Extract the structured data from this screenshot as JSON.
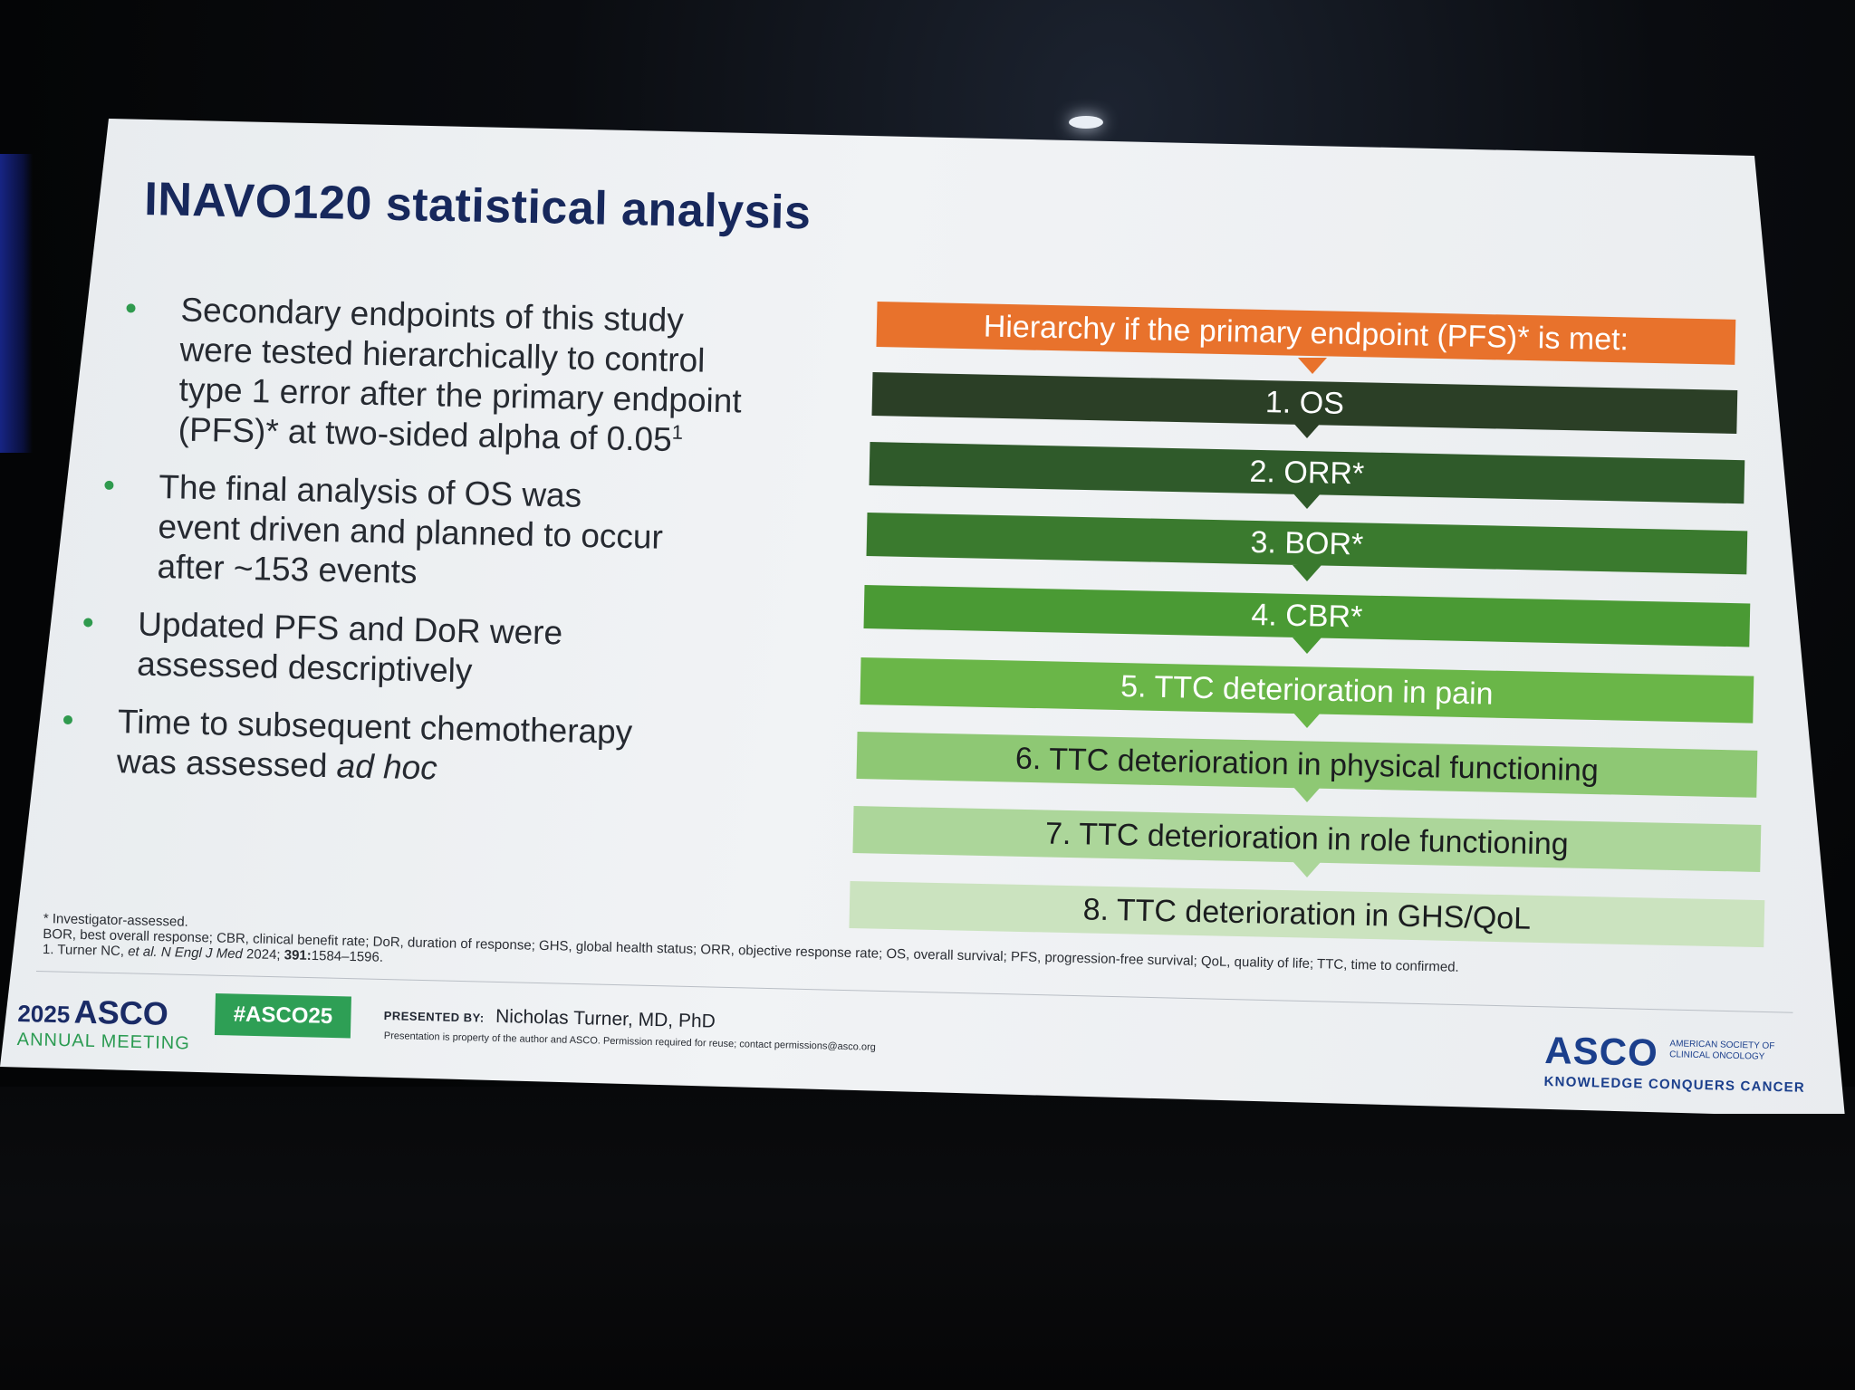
{
  "slide": {
    "title": "INAVO120 statistical analysis",
    "bullets": [
      {
        "lines": [
          "Secondary endpoints of this study",
          "were tested hierarchically to control",
          "type 1 error after the primary endpoint"
        ],
        "last_line": "(PFS)* at two-sided alpha of 0.05",
        "sup": "1"
      },
      {
        "lines": [
          "The final analysis of OS was",
          "event driven and planned to occur",
          "after ~153 events"
        ]
      },
      {
        "lines": [
          "Updated PFS and DoR were",
          "assessed descriptively"
        ]
      },
      {
        "line1": "Time to subsequent chemotherapy",
        "line2_prefix": "was assessed ",
        "line2_italic": "ad hoc"
      }
    ],
    "hierarchy": {
      "header": "Hierarchy if the primary endpoint (PFS)* is met:",
      "header_color": "#e8722c",
      "steps": [
        {
          "label": "1. OS",
          "color": "#2b3f26"
        },
        {
          "label": "2. ORR*",
          "color": "#2f5a2a"
        },
        {
          "label": "3. BOR*",
          "color": "#3a7a2e"
        },
        {
          "label": "4. CBR*",
          "color": "#4a9a34"
        },
        {
          "label": "5. TTC deterioration in pain",
          "color": "#6ab648"
        },
        {
          "label": "6. TTC deterioration in physical functioning",
          "color": "#8ec874"
        },
        {
          "label": "7. TTC deterioration in role functioning",
          "color": "#acd69a"
        },
        {
          "label": "8. TTC deterioration in GHS/QoL",
          "color": "#cbe3bf"
        }
      ]
    },
    "footnotes": {
      "line1": "* Investigator-assessed.",
      "line2": "BOR, best overall response; CBR, clinical benefit rate; DoR, duration of response; GHS, global health status; ORR, objective response rate; OS, overall survival; PFS, progression-free survival; QoL, quality of life; TTC, time to confirmed.",
      "line3_prefix": "1. Turner NC, ",
      "line3_italic": "et al. N Engl J Med",
      "line3_mid": " 2024; ",
      "line3_bold": "391:",
      "line3_suffix": "1584–1596."
    },
    "footer": {
      "meeting_year": "2025",
      "meeting_name": "ASCO",
      "meeting_sub": "ANNUAL MEETING",
      "hashtag": "#ASCO25",
      "presented_label": "PRESENTED BY:",
      "presenter": "Nicholas Turner, MD, PhD",
      "notice": "Presentation is property of the author and ASCO. Permission required for reuse; contact permissions@asco.org",
      "logo_text": "ASCO",
      "logo_org_line1": "AMERICAN SOCIETY OF",
      "logo_org_line2": "CLINICAL ONCOLOGY",
      "logo_tagline": "KNOWLEDGE CONQUERS CANCER"
    }
  }
}
